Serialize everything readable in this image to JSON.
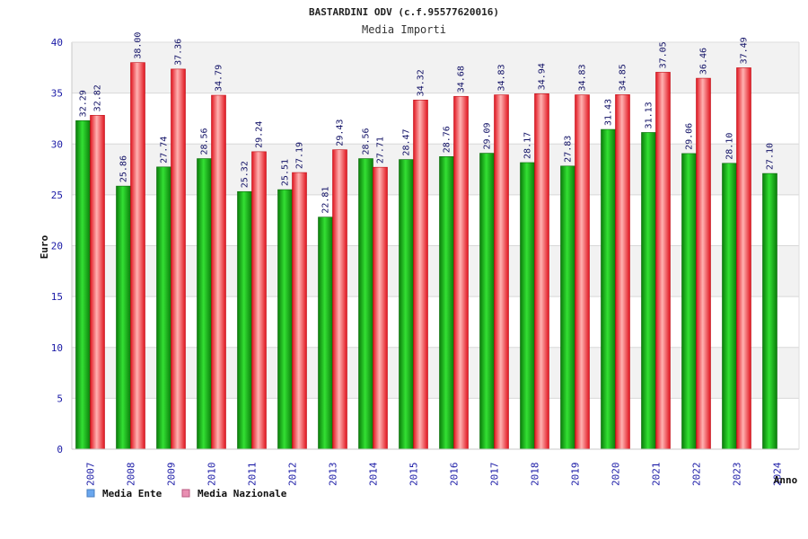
{
  "chart_data": {
    "type": "bar",
    "title": "BASTARDINI ODV (c.f.95577620016)",
    "subtitle": "Media Importi",
    "ylabel": "Euro",
    "xlabel": "Anno",
    "ylim": [
      0,
      40
    ],
    "yticks": [
      0,
      5,
      10,
      15,
      20,
      25,
      30,
      35,
      40
    ],
    "grid": true,
    "legend_position": "bottom-left",
    "categories": [
      "2007",
      "2008",
      "2009",
      "2010",
      "2011",
      "2012",
      "2013",
      "2014",
      "2015",
      "2016",
      "2017",
      "2018",
      "2019",
      "2020",
      "2021",
      "2022",
      "2023",
      "2024"
    ],
    "series": [
      {
        "name": "Media Ente",
        "color": "#12b012",
        "values": [
          32.29,
          25.86,
          27.74,
          28.56,
          25.32,
          25.51,
          22.81,
          28.56,
          28.47,
          28.76,
          29.09,
          28.17,
          27.83,
          31.43,
          31.13,
          29.06,
          28.1,
          27.1
        ],
        "labels": [
          "32.29",
          "25.86",
          "27.74",
          "28.56",
          "25.32",
          "25.51",
          "22.81",
          "28.56",
          "28.47",
          "28.76",
          "29.09",
          "28.17",
          "27.83",
          "31.43",
          "31.13",
          "29.06",
          "28.10",
          "27.10"
        ]
      },
      {
        "name": "Media Nazionale",
        "color": "#e8242c",
        "values": [
          32.82,
          38.0,
          37.36,
          34.79,
          29.24,
          27.19,
          29.43,
          27.71,
          34.32,
          34.68,
          34.83,
          34.94,
          34.83,
          34.85,
          37.05,
          36.46,
          37.49,
          null
        ],
        "labels": [
          "32.82",
          "38.00",
          "37.36",
          "34.79",
          "29.24",
          "27.19",
          "29.43",
          "27.71",
          "34.32",
          "34.68",
          "34.83",
          "34.94",
          "34.83",
          "34.85",
          "37.05",
          "36.46",
          "37.49",
          ""
        ]
      }
    ],
    "legend": [
      {
        "label": "Media Ente",
        "swatch": "#6aa7ee"
      },
      {
        "label": "Media Nazionale",
        "swatch": "#e98fb2"
      }
    ]
  }
}
